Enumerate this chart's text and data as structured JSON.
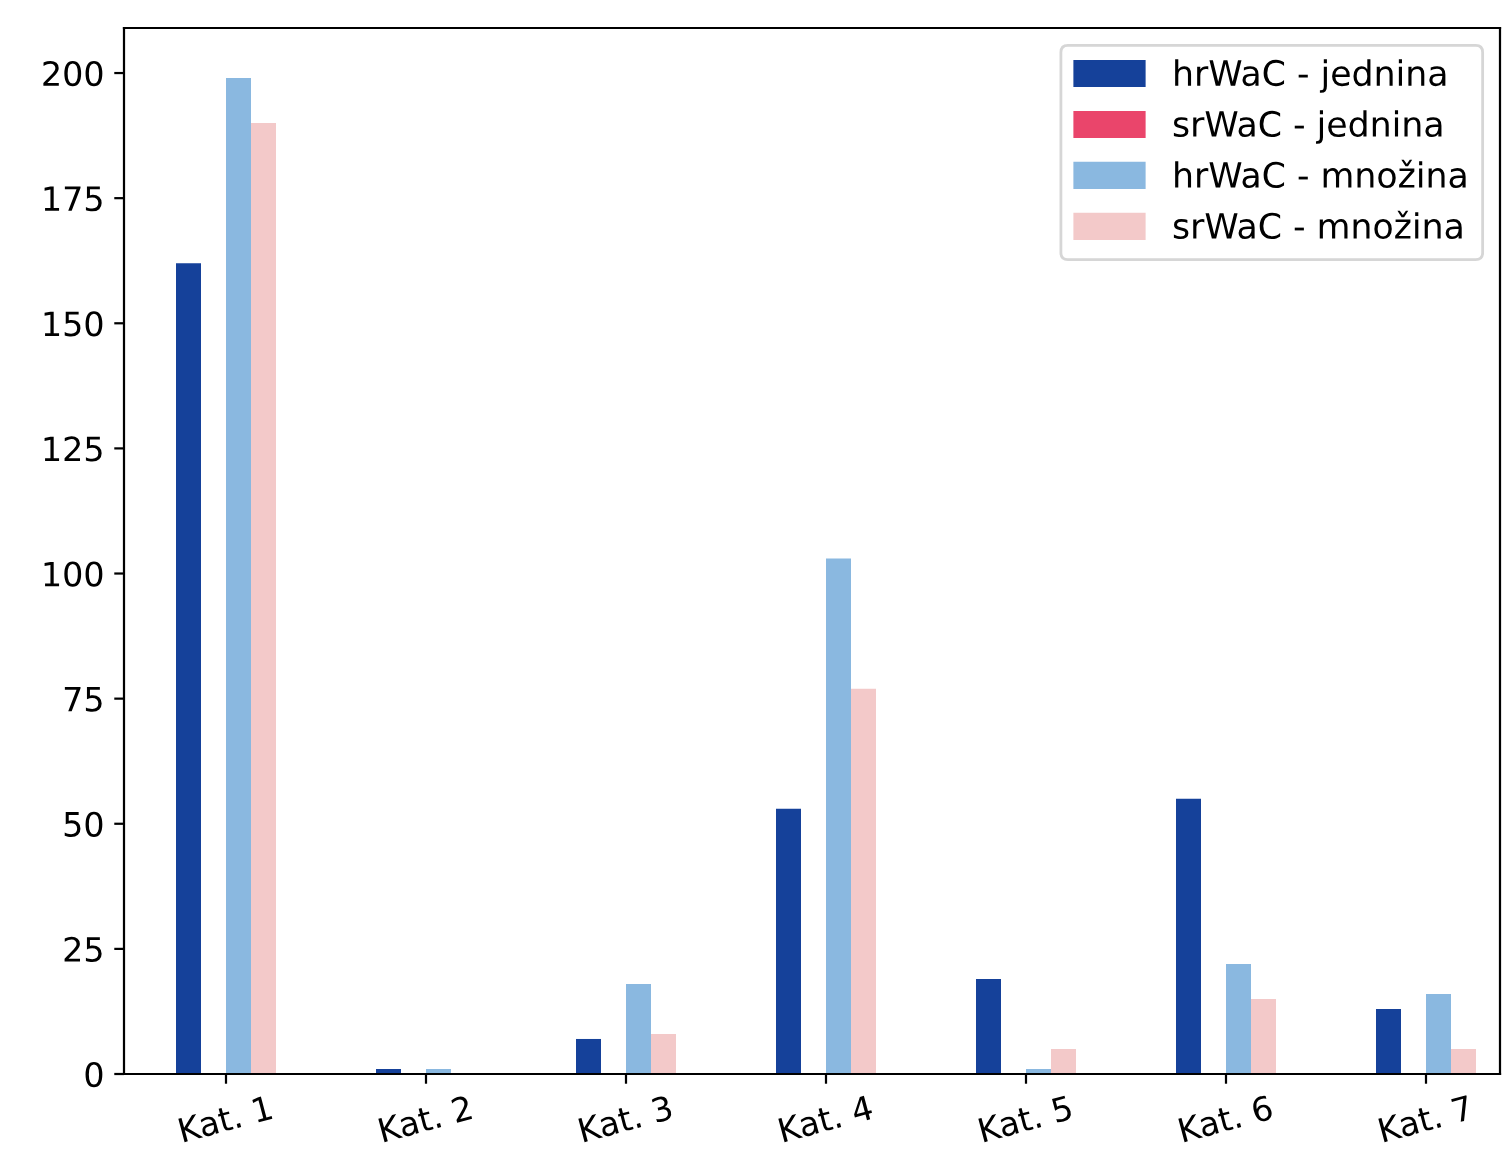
{
  "chart_data": {
    "type": "bar",
    "categories": [
      "Kat. 1",
      "Kat. 2",
      "Kat. 3",
      "Kat. 4",
      "Kat. 5",
      "Kat. 6",
      "Kat. 7"
    ],
    "series": [
      {
        "name": "hrWaC - jednina",
        "color": "#15419a",
        "values": [
          162,
          1,
          7,
          53,
          19,
          55,
          13
        ]
      },
      {
        "name": "srWaC - jednina",
        "color": "#ea456b",
        "values": [
          0,
          0,
          0,
          0,
          0,
          0,
          0
        ]
      },
      {
        "name": "hrWaC - množina",
        "color": "#8ab8e0",
        "values": [
          199,
          1,
          18,
          103,
          1,
          22,
          16
        ]
      },
      {
        "name": "srWaC - množina",
        "color": "#f3c9c9",
        "values": [
          190,
          0,
          8,
          77,
          5,
          15,
          5
        ]
      }
    ],
    "ylim": [
      0,
      209
    ],
    "yticks": [
      0,
      25,
      50,
      75,
      100,
      125,
      150,
      175,
      200
    ],
    "grid": false,
    "legend": "top right"
  }
}
